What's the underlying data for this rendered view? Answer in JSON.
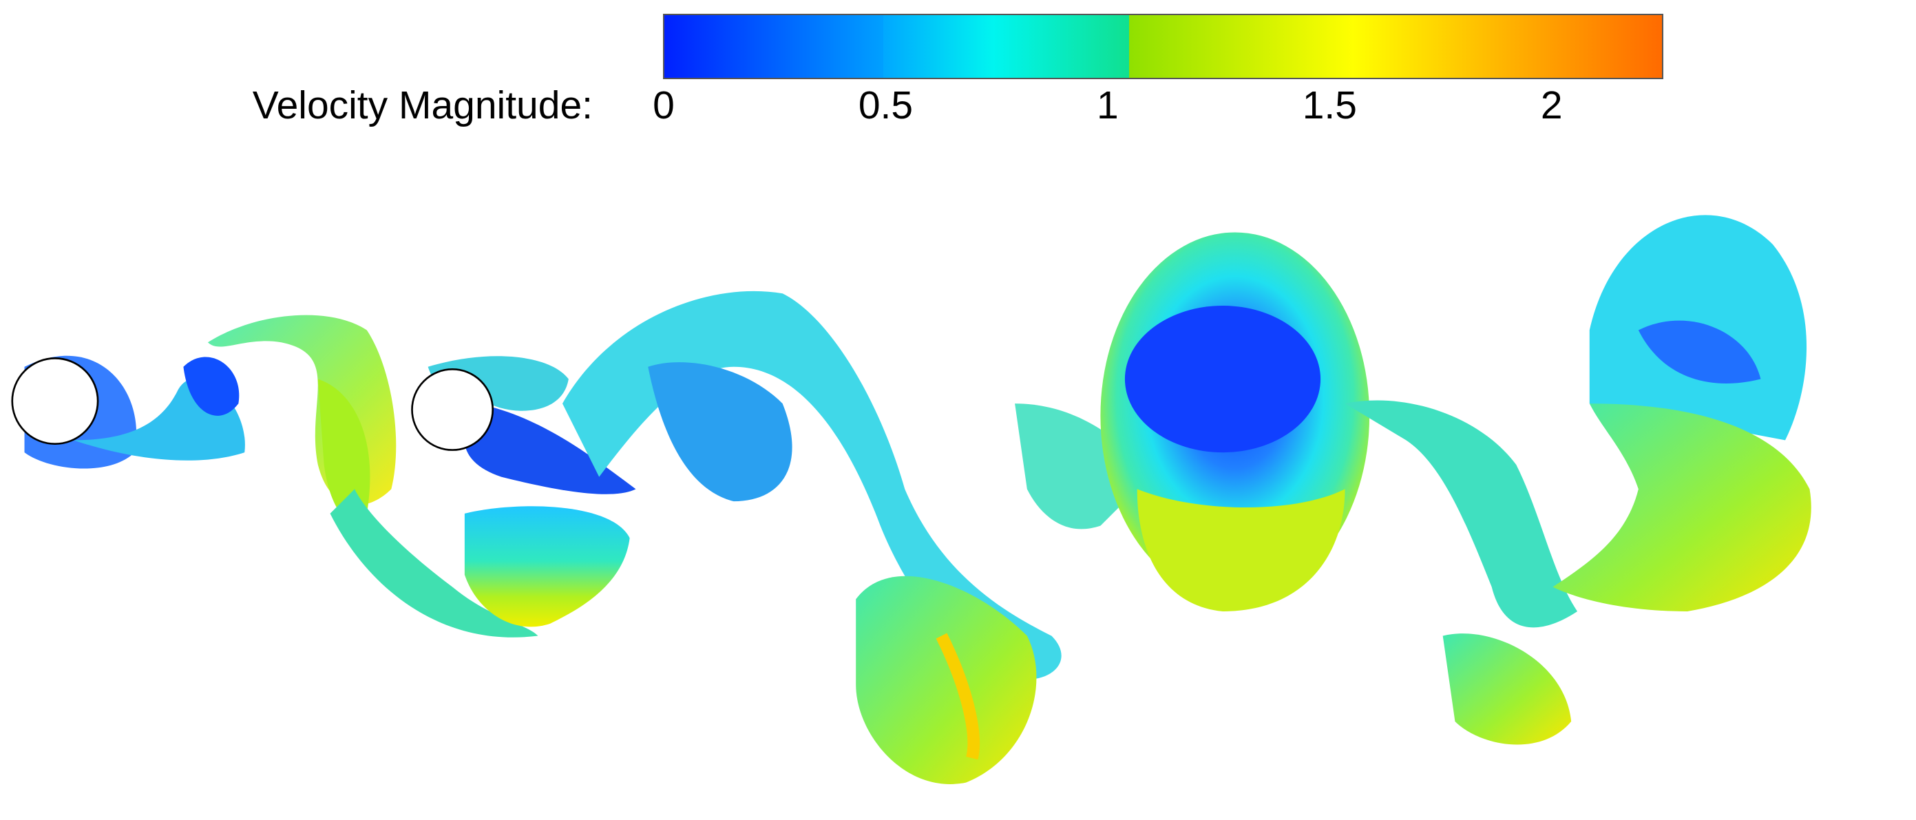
{
  "colorbar": {
    "label": "Velocity Magnitude:",
    "lim": [
      0,
      2.25
    ],
    "ticks": [
      0,
      0.5,
      1,
      1.5,
      2
    ]
  }
}
